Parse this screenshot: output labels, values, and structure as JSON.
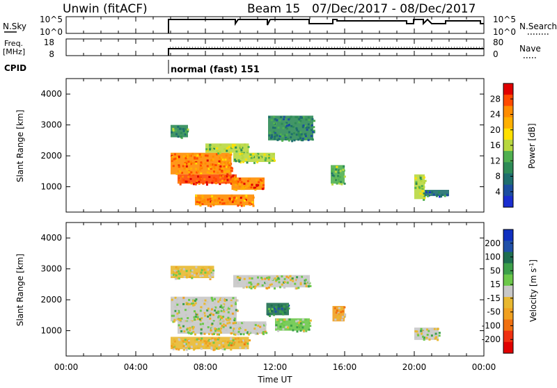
{
  "header": {
    "station": "Unwin (fitACF)",
    "beam": "Beam 15",
    "dates": "07/Dec/2017 - 08/Dec/2017"
  },
  "nsky_panel": {
    "left_label": "N.Sky",
    "left_ticks": [
      "10^5",
      "10^0"
    ],
    "right_ticks": [
      "10^5",
      "10^0"
    ],
    "right_label": "N.Search"
  },
  "freq_panel": {
    "left_label_1": "Freq.",
    "left_label_2": "[MHz]",
    "left_ticks": [
      "18",
      "8"
    ],
    "right_ticks": [
      "80",
      "0"
    ],
    "right_label": "Nave"
  },
  "cpid": {
    "label": "CPID",
    "mode": "normal (fast) 151"
  },
  "power_panel": {
    "ylabel": "Slant Range [km]",
    "yticks": [
      "4000",
      "3000",
      "2000",
      "1000"
    ],
    "colorbar_label": "Power [dB]",
    "colorbar_ticks": [
      "28",
      "24",
      "20",
      "16",
      "12",
      "8",
      "4"
    ],
    "colorbar_colors": [
      "#e00000",
      "#ff4a00",
      "#ff8c00",
      "#ffb000",
      "#ffe000",
      "#b8d840",
      "#50b050",
      "#2e8b57",
      "#1e6e6e",
      "#1c4ea0",
      "#1a2ed0"
    ]
  },
  "velocity_panel": {
    "ylabel": "Slant Range [km]",
    "yticks": [
      "4000",
      "3000",
      "2000",
      "1000"
    ],
    "colorbar_label": "Velocity [m s^-1]",
    "colorbar_ticks": [
      "200",
      "100",
      "50",
      "15",
      "-15",
      "-50",
      "-100",
      "-200"
    ],
    "colorbar_colors": [
      "#1030c0",
      "#2050a8",
      "#1e6e50",
      "#3da04a",
      "#6cc84a",
      "#c8c8c8",
      "#e8b830",
      "#f0a020",
      "#f07010",
      "#f03010",
      "#e00000"
    ]
  },
  "xaxis": {
    "ticks": [
      "00:00",
      "04:00",
      "08:00",
      "12:00",
      "16:00",
      "20:00",
      "00:00"
    ],
    "label": "Time UT"
  },
  "chart_data": {
    "type": "heatmap",
    "title": "Unwin (fitACF) Beam 15 07/Dec/2017 - 08/Dec/2017",
    "xlabel": "Time UT",
    "ylabel": "Slant Range [km]",
    "xlim_hours": [
      0,
      24
    ],
    "ylim_km": [
      180,
      4500
    ],
    "power_db_colorbar_range": [
      0,
      30
    ],
    "velocity_colorbar_range": [
      -250,
      250
    ],
    "data_start_hour": 6.0,
    "power_regions": [
      {
        "t0": 6.0,
        "t1": 9.5,
        "r0": 1400,
        "r1": 2100,
        "value_db": 24
      },
      {
        "t0": 6.4,
        "t1": 9.8,
        "r0": 1100,
        "r1": 1400,
        "value_db": 27
      },
      {
        "t0": 9.5,
        "t1": 11.4,
        "r0": 900,
        "r1": 1300,
        "value_db": 25
      },
      {
        "t0": 7.4,
        "t1": 10.8,
        "r0": 400,
        "r1": 750,
        "value_db": 24
      },
      {
        "t0": 6.0,
        "t1": 7.0,
        "r0": 2600,
        "r1": 3000,
        "value_db": 10
      },
      {
        "t0": 8.0,
        "t1": 10.5,
        "r0": 2100,
        "r1": 2400,
        "value_db": 14
      },
      {
        "t0": 9.6,
        "t1": 12.0,
        "r0": 1800,
        "r1": 2100,
        "value_db": 14
      },
      {
        "t0": 11.6,
        "t1": 14.2,
        "r0": 2500,
        "r1": 3300,
        "value_db": 8
      },
      {
        "t0": 15.2,
        "t1": 16.0,
        "r0": 1100,
        "r1": 1700,
        "value_db": 12
      },
      {
        "t0": 20.0,
        "t1": 20.6,
        "r0": 600,
        "r1": 1400,
        "value_db": 14
      },
      {
        "t0": 20.6,
        "t1": 22.0,
        "r0": 700,
        "r1": 900,
        "value_db": 6
      }
    ],
    "velocity_regions": [
      {
        "t0": 6.0,
        "t1": 9.8,
        "r0": 1300,
        "r1": 2100,
        "value_ms": 0
      },
      {
        "t0": 6.4,
        "t1": 11.5,
        "r0": 900,
        "r1": 1300,
        "value_ms": 0
      },
      {
        "t0": 6.0,
        "t1": 10.5,
        "r0": 400,
        "r1": 800,
        "value_ms": -40
      },
      {
        "t0": 6.0,
        "t1": 8.5,
        "r0": 2700,
        "r1": 3100,
        "value_ms": -30
      },
      {
        "t0": 9.6,
        "t1": 14.0,
        "r0": 2400,
        "r1": 2800,
        "value_ms": 0
      },
      {
        "t0": 11.5,
        "t1": 12.8,
        "r0": 1500,
        "r1": 1900,
        "value_ms": 150
      },
      {
        "t0": 12.0,
        "t1": 14.0,
        "r0": 1000,
        "r1": 1400,
        "value_ms": 30
      },
      {
        "t0": 15.3,
        "t1": 16.0,
        "r0": 1300,
        "r1": 1800,
        "value_ms": -80
      },
      {
        "t0": 20.0,
        "t1": 21.4,
        "r0": 700,
        "r1": 1100,
        "value_ms": 0
      }
    ]
  }
}
